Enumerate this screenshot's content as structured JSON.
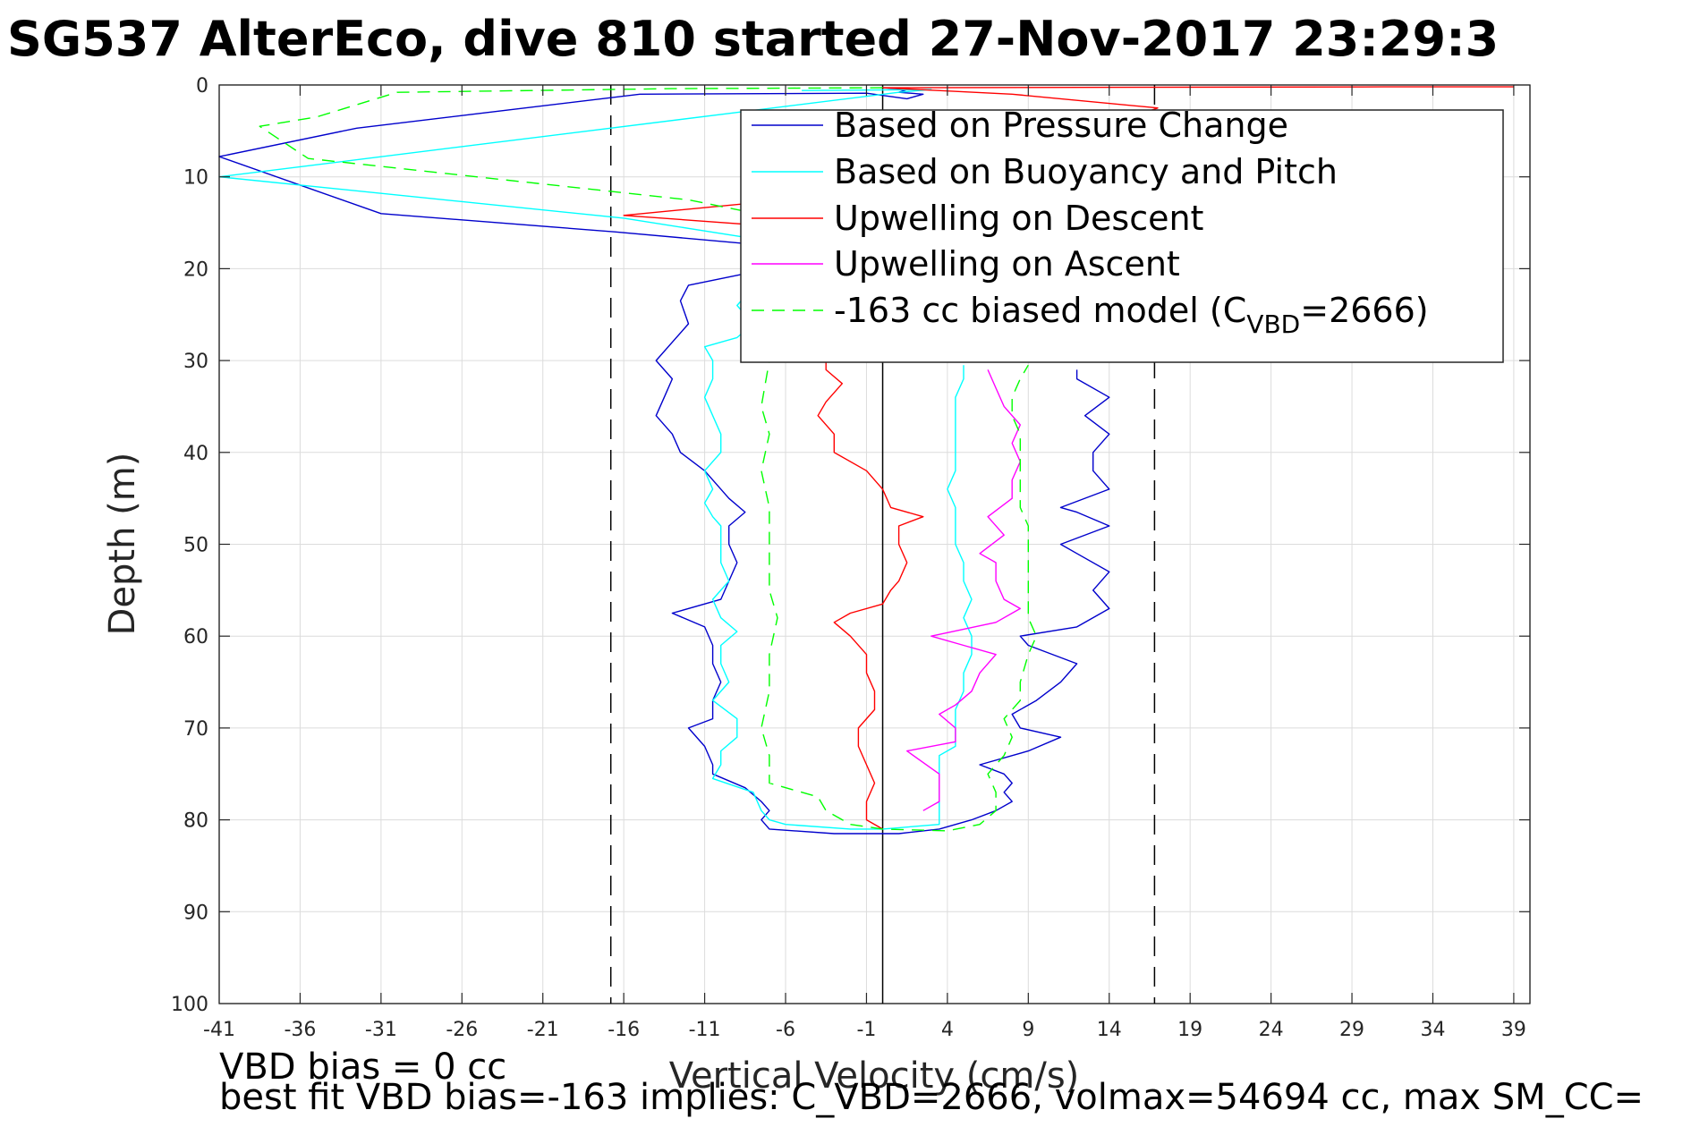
{
  "chart_data": {
    "type": "line",
    "title": "SG537 AlterEco, dive 810 started 27-Nov-2017 23:29:3",
    "xlabel": "Vertical Velocity (cm/s)",
    "ylabel": "Depth (m)",
    "xlim": [
      -41,
      40
    ],
    "ylim": [
      0,
      100
    ],
    "y_reversed": true,
    "grid": true,
    "xticks": [
      -41,
      -36,
      -31,
      -26,
      -21,
      -16,
      -11,
      -6,
      -1,
      4,
      9,
      14,
      19,
      24,
      29,
      34,
      39
    ],
    "yticks": [
      0,
      10,
      20,
      30,
      40,
      50,
      60,
      70,
      80,
      90,
      100
    ],
    "legend_position": "top-right",
    "reference_lines": {
      "dashed_x": [
        -16.8,
        16.8
      ],
      "solid_x": [
        0
      ]
    },
    "series": [
      {
        "name": "Based on Pressure Change",
        "color": "#0000cc",
        "style": "solid",
        "points": [
          [
            0,
            0.3
          ],
          [
            1.5,
            0.5
          ],
          [
            1,
            0.8
          ],
          [
            2.5,
            1
          ],
          [
            1.5,
            1.5
          ],
          [
            -1,
            0.9
          ],
          [
            -15,
            1
          ],
          [
            -32.5,
            4.7
          ],
          [
            -41,
            7.8
          ],
          [
            -31,
            14
          ],
          [
            -16.5,
            16
          ],
          [
            -7,
            17.5
          ],
          [
            -3,
            18.5
          ],
          [
            -1,
            19
          ],
          [
            -7,
            20
          ],
          [
            -12,
            21.8
          ],
          [
            -12.5,
            23.5
          ],
          [
            -12,
            26
          ],
          [
            -14,
            30
          ],
          [
            -13,
            32
          ],
          [
            -13.5,
            34
          ],
          [
            -14,
            36
          ],
          [
            -13,
            38
          ],
          [
            -12.5,
            40
          ],
          [
            -11,
            42
          ],
          [
            -10,
            44
          ],
          [
            -9.5,
            45
          ],
          [
            -8.5,
            46.5
          ],
          [
            -9.5,
            48
          ],
          [
            -9.5,
            50
          ],
          [
            -9,
            52
          ],
          [
            -9.5,
            54
          ],
          [
            -10,
            56
          ],
          [
            -13,
            57.5
          ],
          [
            -11,
            59
          ],
          [
            -10.5,
            61
          ],
          [
            -10.5,
            63
          ],
          [
            -10,
            65
          ],
          [
            -10.5,
            67
          ],
          [
            -10.5,
            69
          ],
          [
            -12,
            70
          ],
          [
            -11,
            72
          ],
          [
            -10.5,
            74
          ],
          [
            -10.5,
            75
          ],
          [
            -8.5,
            76.5
          ],
          [
            -7.5,
            78
          ],
          [
            -7,
            79
          ],
          [
            -7.5,
            80
          ],
          [
            -7,
            81
          ],
          [
            -3,
            81.5
          ],
          [
            1,
            81.5
          ],
          [
            3.5,
            81
          ],
          [
            5.5,
            80
          ],
          [
            7,
            79
          ],
          [
            8,
            78
          ],
          [
            7.5,
            77
          ],
          [
            8,
            76
          ],
          [
            7.5,
            75
          ],
          [
            6,
            74
          ],
          [
            9,
            72.5
          ],
          [
            11,
            71
          ],
          [
            8.5,
            70
          ],
          [
            8,
            68.5
          ],
          [
            9.5,
            67
          ],
          [
            11,
            65
          ],
          [
            12,
            63
          ],
          [
            9,
            61
          ],
          [
            8.5,
            60
          ],
          [
            12,
            59
          ],
          [
            14,
            57
          ],
          [
            13,
            55
          ],
          [
            14,
            53
          ],
          [
            12,
            51
          ],
          [
            11,
            50
          ],
          [
            14,
            48
          ],
          [
            12,
            46.5
          ],
          [
            11,
            46
          ],
          [
            14,
            44
          ],
          [
            13,
            42
          ],
          [
            13,
            40
          ],
          [
            14,
            38
          ],
          [
            12.5,
            36
          ],
          [
            14,
            34
          ],
          [
            12,
            32
          ],
          [
            12,
            31
          ]
        ]
      },
      {
        "name": "Based on Buoyancy and Pitch",
        "color": "#00ffff",
        "style": "solid",
        "points": [
          [
            -5,
            0.6
          ],
          [
            3,
            0.5
          ],
          [
            1,
            0.8
          ],
          [
            -41,
            10
          ],
          [
            -16,
            14.5
          ],
          [
            -7,
            17
          ],
          [
            -2,
            18
          ],
          [
            -5,
            20
          ],
          [
            -8,
            22
          ],
          [
            -9,
            24
          ],
          [
            -8,
            26
          ],
          [
            -9,
            27.5
          ],
          [
            -11,
            28.5
          ],
          [
            -10.5,
            30
          ],
          [
            -10.5,
            32
          ],
          [
            -11,
            34
          ],
          [
            -10.5,
            36
          ],
          [
            -10,
            38
          ],
          [
            -10,
            40
          ],
          [
            -11,
            42
          ],
          [
            -10.5,
            44
          ],
          [
            -11,
            45.5
          ],
          [
            -10.5,
            47
          ],
          [
            -10,
            48
          ],
          [
            -10,
            50
          ],
          [
            -10,
            52
          ],
          [
            -9.5,
            54
          ],
          [
            -10.5,
            56
          ],
          [
            -10,
            58
          ],
          [
            -9,
            59.5
          ],
          [
            -10,
            61
          ],
          [
            -10,
            63
          ],
          [
            -9.5,
            65
          ],
          [
            -10.5,
            67
          ],
          [
            -9,
            69
          ],
          [
            -9,
            71
          ],
          [
            -10,
            72.5
          ],
          [
            -10,
            74
          ],
          [
            -10.5,
            75.5
          ],
          [
            -8,
            77
          ],
          [
            -7.5,
            79
          ],
          [
            -7,
            80
          ],
          [
            -6,
            80.5
          ],
          [
            -2,
            81
          ],
          [
            0,
            81
          ],
          [
            3.5,
            80.5
          ],
          [
            3.5,
            79
          ],
          [
            3.5,
            77
          ],
          [
            3.5,
            75
          ],
          [
            3.5,
            73
          ],
          [
            4.5,
            72
          ],
          [
            4.5,
            70
          ],
          [
            4.5,
            68
          ],
          [
            5,
            66
          ],
          [
            5,
            64
          ],
          [
            5.5,
            62
          ],
          [
            5.5,
            60
          ],
          [
            5,
            58
          ],
          [
            5.5,
            56
          ],
          [
            5,
            54
          ],
          [
            5,
            52
          ],
          [
            4.5,
            50
          ],
          [
            4.5,
            48
          ],
          [
            4.5,
            46
          ],
          [
            4,
            44
          ],
          [
            4.5,
            42
          ],
          [
            4.5,
            40
          ],
          [
            4.5,
            38
          ],
          [
            4.5,
            36
          ],
          [
            4.5,
            34
          ],
          [
            5,
            32
          ],
          [
            5,
            30.5
          ]
        ]
      },
      {
        "name": "Upwelling on Descent",
        "color": "#ff0000",
        "style": "solid",
        "points": [
          [
            39,
            0.2
          ],
          [
            31,
            0.2
          ],
          [
            0,
            0.3
          ],
          [
            8,
            1
          ],
          [
            17,
            2.5
          ],
          [
            13,
            5
          ],
          [
            2,
            8
          ],
          [
            -3,
            12
          ],
          [
            -16,
            14.2
          ],
          [
            -2,
            16
          ],
          [
            -3,
            19
          ],
          [
            -3,
            22
          ],
          [
            -4,
            25
          ],
          [
            -3.5,
            28
          ],
          [
            -3.5,
            31
          ],
          [
            -2.5,
            32.5
          ],
          [
            -3.5,
            34.5
          ],
          [
            -4,
            36
          ],
          [
            -3,
            38
          ],
          [
            -3,
            40
          ],
          [
            -1,
            42
          ],
          [
            0,
            44
          ],
          [
            0.5,
            46
          ],
          [
            2.5,
            47
          ],
          [
            1,
            48
          ],
          [
            1,
            50
          ],
          [
            1.5,
            52
          ],
          [
            1,
            54
          ],
          [
            0.5,
            55
          ],
          [
            0,
            56.5
          ],
          [
            -2,
            57.5
          ],
          [
            -3,
            58.5
          ],
          [
            -2,
            60
          ],
          [
            -1,
            62
          ],
          [
            -1,
            64
          ],
          [
            -0.5,
            66
          ],
          [
            -0.5,
            68
          ],
          [
            -1.5,
            70
          ],
          [
            -1.5,
            72
          ],
          [
            -1,
            74
          ],
          [
            -0.5,
            76
          ],
          [
            -1,
            78
          ],
          [
            -1,
            80
          ],
          [
            0,
            81
          ]
        ]
      },
      {
        "name": "Upwelling on Ascent",
        "color": "#ff00ff",
        "style": "solid",
        "points": [
          [
            2.5,
            79
          ],
          [
            3.5,
            78
          ],
          [
            3.5,
            77
          ],
          [
            3.5,
            76
          ],
          [
            3.5,
            75
          ],
          [
            1.5,
            72.5
          ],
          [
            4.5,
            71.5
          ],
          [
            4.5,
            70
          ],
          [
            3.5,
            68.5
          ],
          [
            4.5,
            67.5
          ],
          [
            5.5,
            66
          ],
          [
            6,
            64
          ],
          [
            7,
            62
          ],
          [
            5,
            61
          ],
          [
            3,
            60
          ],
          [
            7,
            58.5
          ],
          [
            8.5,
            57
          ],
          [
            7.5,
            56
          ],
          [
            7,
            54
          ],
          [
            7,
            52
          ],
          [
            6,
            51
          ],
          [
            7.5,
            49
          ],
          [
            6.5,
            47
          ],
          [
            8,
            45
          ],
          [
            8,
            43
          ],
          [
            8.5,
            41
          ],
          [
            8,
            39
          ],
          [
            8.5,
            37
          ],
          [
            7.5,
            35
          ],
          [
            7,
            33
          ],
          [
            6.5,
            31
          ]
        ]
      },
      {
        "name": "-163 cc biased model (C_VBD=2666)",
        "color": "#00ff00",
        "style": "dashed",
        "points": [
          [
            0,
            0.3
          ],
          [
            -13,
            0.4
          ],
          [
            -30,
            0.8
          ],
          [
            -35,
            3.5
          ],
          [
            -38.5,
            4.5
          ],
          [
            -35.5,
            8
          ],
          [
            -12,
            12.5
          ],
          [
            -5,
            15
          ],
          [
            -6,
            20
          ],
          [
            -7,
            25
          ],
          [
            -7,
            30
          ],
          [
            -7.5,
            35
          ],
          [
            -7,
            38
          ],
          [
            -7.5,
            42
          ],
          [
            -7,
            46
          ],
          [
            -7,
            50
          ],
          [
            -7,
            55
          ],
          [
            -6.5,
            58
          ],
          [
            -7,
            62
          ],
          [
            -7,
            66
          ],
          [
            -7.5,
            70
          ],
          [
            -7,
            73
          ],
          [
            -7,
            76
          ],
          [
            -4,
            77.5
          ],
          [
            -3.5,
            79
          ],
          [
            -2,
            80.5
          ],
          [
            0,
            81
          ],
          [
            4,
            81.2
          ],
          [
            6,
            80.5
          ],
          [
            7,
            79
          ],
          [
            7,
            77
          ],
          [
            6.5,
            75
          ],
          [
            7.5,
            73
          ],
          [
            8,
            71
          ],
          [
            7.5,
            69
          ],
          [
            8.5,
            67
          ],
          [
            8.5,
            65
          ],
          [
            9,
            62
          ],
          [
            9.5,
            60
          ],
          [
            9,
            58
          ],
          [
            9,
            55
          ],
          [
            9,
            52
          ],
          [
            9,
            50
          ],
          [
            9,
            48
          ],
          [
            8.5,
            46
          ],
          [
            8.5,
            44
          ],
          [
            8.5,
            42
          ],
          [
            8.5,
            40
          ],
          [
            8.5,
            38
          ],
          [
            8,
            36
          ],
          [
            8,
            34
          ],
          [
            8.5,
            32
          ],
          [
            9,
            30.5
          ]
        ]
      }
    ]
  },
  "legend": {
    "items": [
      {
        "label": "Based on Pressure Change",
        "color": "#0000cc",
        "dash": false
      },
      {
        "label": "Based on Buoyancy and Pitch",
        "color": "#00ffff",
        "dash": false
      },
      {
        "label": "Upwelling on Descent",
        "color": "#ff0000",
        "dash": false
      },
      {
        "label": "Upwelling on Ascent",
        "color": "#ff00ff",
        "dash": false
      }
    ],
    "last_item": {
      "prefix": "-163 cc biased model (C",
      "subscript": "VBD",
      "suffix": "=2666)",
      "color": "#00ff00",
      "dash": true
    }
  },
  "footer": {
    "line1": "VBD bias = 0 cc",
    "line2": "best fit VBD bias=-163 implies: C_VBD=2666, volmax=54694 cc, max SM_CC="
  }
}
